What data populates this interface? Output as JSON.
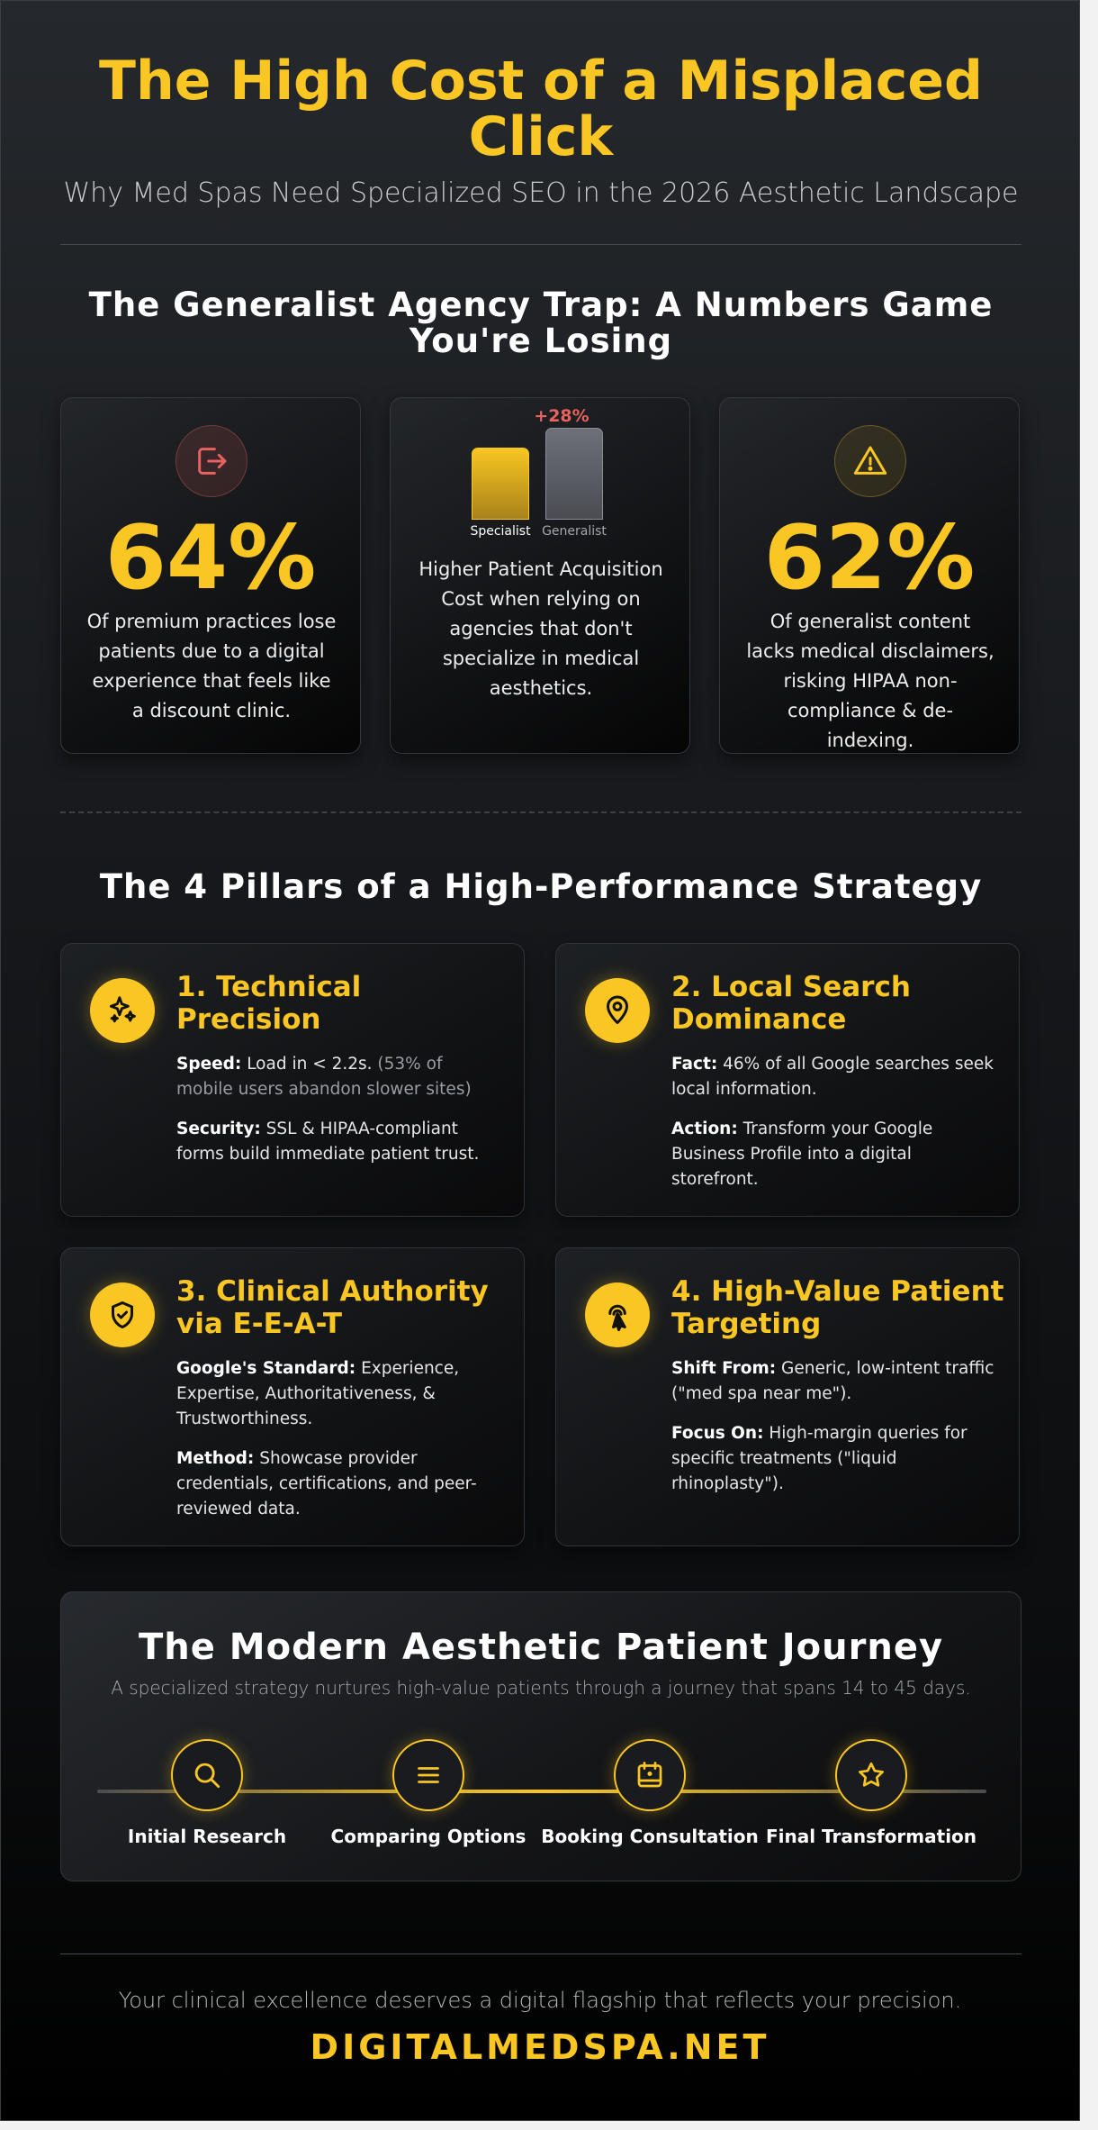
{
  "header": {
    "title": "The High Cost of a Misplaced Click",
    "subtitle": "Why Med Spas Need Specialized SEO in the 2026 Aesthetic Landscape"
  },
  "trap_section": {
    "heading": "The Generalist Agency Trap: A Numbers Game You're Losing",
    "cards": [
      {
        "icon": "exit-door-icon",
        "value": "64%",
        "text": "Of premium practices lose patients due to a digital experience that feels like a discount clinic."
      },
      {
        "increase_label": "+28%",
        "specialist_label": "Specialist",
        "generalist_label": "Generalist",
        "text": "Higher Patient Acquisition Cost when relying on agencies that don't specialize in medical aesthetics."
      },
      {
        "icon": "warning-triangle-icon",
        "value": "62%",
        "text": "Of generalist content lacks medical disclaimers, risking HIPAA non-compliance & de-indexing."
      }
    ]
  },
  "pillars_section": {
    "heading": "The 4 Pillars of a High-Performance Strategy",
    "pillars": [
      {
        "icon": "sparkles-icon",
        "title": "1. Technical Precision",
        "p1_label": "Speed:",
        "p1_text": "Load in < 2.2s.",
        "p1_note": "(53% of mobile users abandon slower sites)",
        "p2_label": "Security:",
        "p2_text": "SSL & HIPAA-compliant forms build immediate patient trust."
      },
      {
        "icon": "map-pin-icon",
        "title": "2. Local Search Dominance",
        "p1_label": "Fact:",
        "p1_text": "46% of all Google searches seek local information.",
        "p2_label": "Action:",
        "p2_text": "Transform your Google Business Profile into a digital storefront."
      },
      {
        "icon": "shield-check-icon",
        "title": "3. Clinical Authority via E-E-A-T",
        "p1_label": "Google's Standard:",
        "p1_text": "Experience, Expertise, Authoritativeness, & Trustworthiness.",
        "p2_label": "Method:",
        "p2_text": "Showcase provider credentials, certifications, and peer-reviewed data."
      },
      {
        "icon": "tap-cursor-icon",
        "title": "4. High-Value Patient Targeting",
        "p1_label": "Shift From:",
        "p1_text": "Generic, low-intent traffic (\"med spa near me\").",
        "p2_label": "Focus On:",
        "p2_text": "High-margin queries for specific treatments (\"liquid rhinoplasty\")."
      }
    ]
  },
  "journey": {
    "title": "The Modern Aesthetic Patient Journey",
    "subtitle": "A specialized strategy nurtures high-value patients through a journey that spans 14 to 45 days.",
    "steps": [
      {
        "icon": "search-icon",
        "label": "Initial Research"
      },
      {
        "icon": "list-icon",
        "label": "Comparing Options"
      },
      {
        "icon": "calendar-icon",
        "label": "Booking Consultation"
      },
      {
        "icon": "star-icon",
        "label": "Final Transformation"
      }
    ]
  },
  "footer": {
    "tagline": "Your clinical excellence deserves a digital flagship that reflects your precision.",
    "brand": "DIGITALMEDSPA.NET"
  },
  "colors": {
    "accent": "#f9c623",
    "alert": "#e8625f",
    "background": "#15171a"
  }
}
